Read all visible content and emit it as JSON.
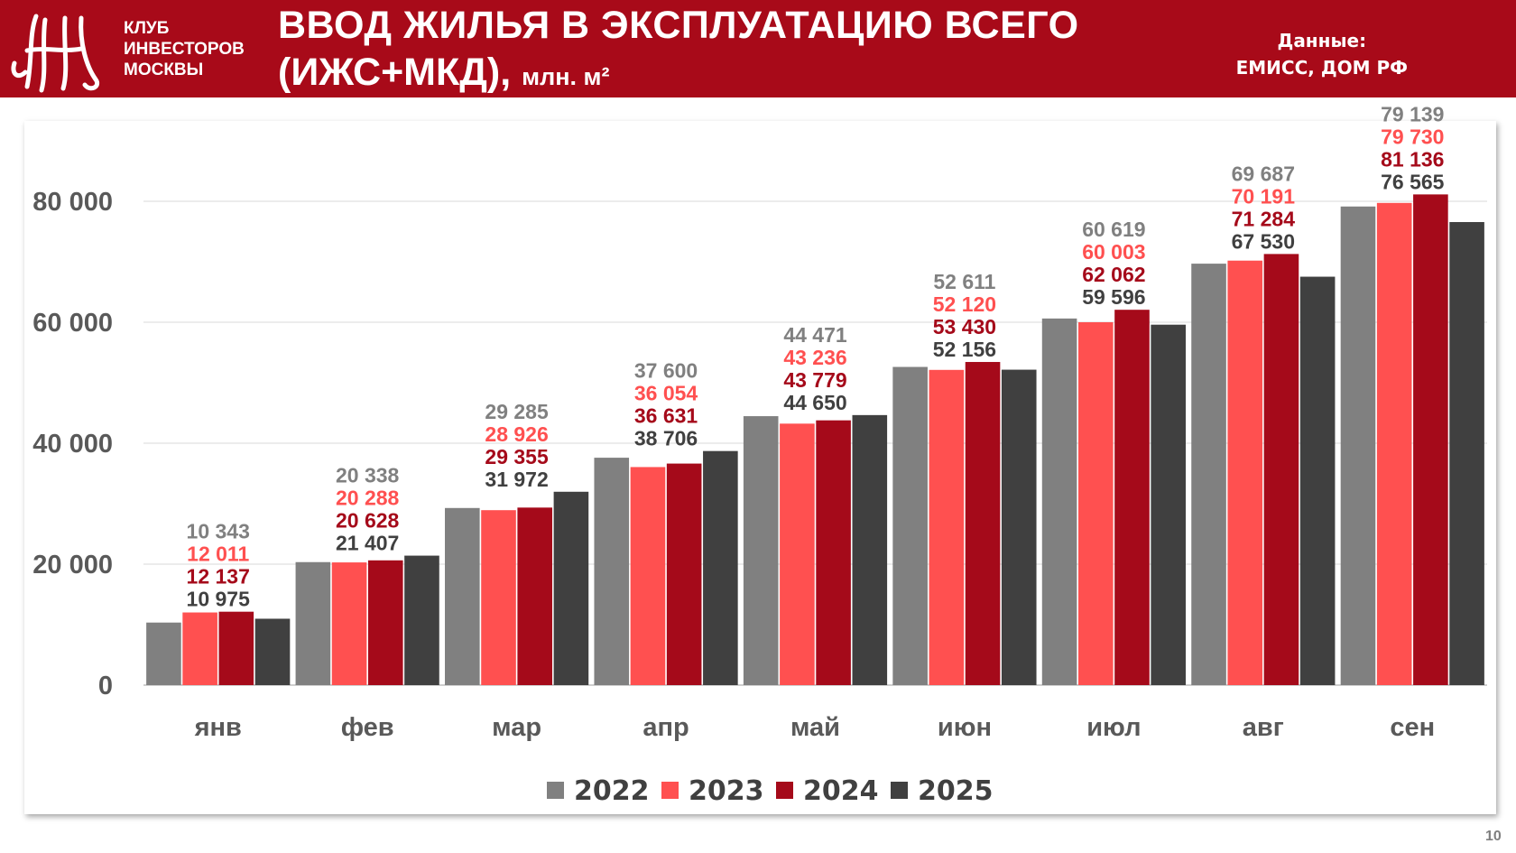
{
  "header": {
    "club_lines": [
      "КЛУБ",
      "ИНВЕСТОРОВ",
      "МОСКВЫ"
    ],
    "logo_text": "КИМ",
    "title_line1": "ВВОД ЖИЛЬЯ В ЭКСПЛУАТАЦИЮ ВСЕГО",
    "title_line2": "(ИЖС+МКД),",
    "title_unit": "млн. м²",
    "source_label": "Данные:",
    "source_value": "ЕМИСС, ДОМ РФ"
  },
  "page_number": "10",
  "chart_data": {
    "type": "bar",
    "title": "ВВОД ЖИЛЬЯ В ЭКСПЛУАТАЦИЮ ВСЕГО (ИЖС+МКД), млн. м²",
    "categories": [
      "янв",
      "фев",
      "мар",
      "апр",
      "май",
      "июн",
      "июл",
      "авг",
      "сен"
    ],
    "series": [
      {
        "name": "2022",
        "color": "#808080",
        "values": [
          10343,
          20338,
          29285,
          37600,
          44471,
          52611,
          60619,
          69687,
          79139
        ]
      },
      {
        "name": "2023",
        "color": "#FF5050",
        "values": [
          12011,
          20288,
          28926,
          36054,
          43236,
          52120,
          60003,
          70191,
          79730
        ]
      },
      {
        "name": "2024",
        "color": "#A50A1A",
        "values": [
          12137,
          20628,
          29355,
          36631,
          43779,
          53430,
          62062,
          71284,
          81136
        ]
      },
      {
        "name": "2025",
        "color": "#404040",
        "values": [
          10975,
          21407,
          31972,
          38706,
          44650,
          52156,
          59596,
          67530,
          76565
        ]
      }
    ],
    "yticks": [
      "0",
      "20 000",
      "40 000",
      "60 000",
      "80 000"
    ],
    "ytick_values": [
      0,
      20000,
      40000,
      60000,
      80000
    ],
    "ylim": [
      0,
      90000
    ],
    "grid": true,
    "legend": "bottom",
    "xlabel": "",
    "ylabel": ""
  }
}
